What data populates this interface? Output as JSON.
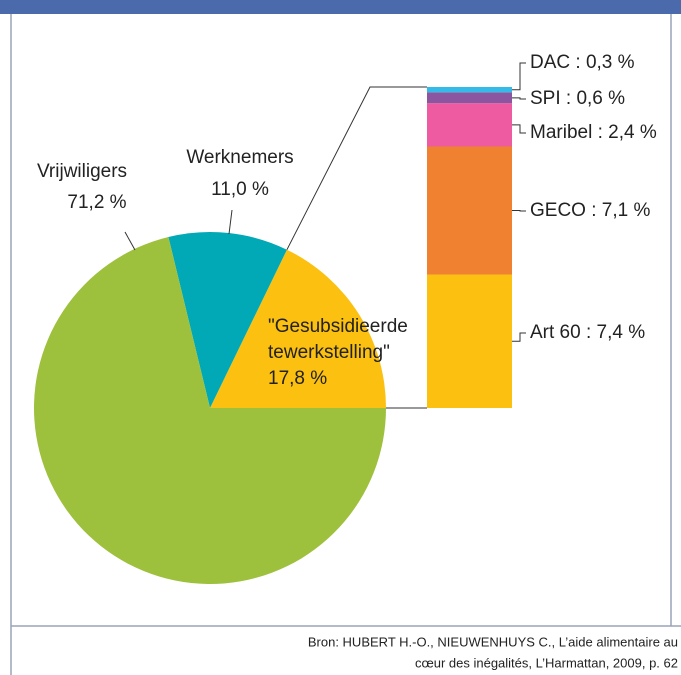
{
  "chart_data": {
    "type": "pie",
    "categories": [
      "\"Gesubsidieerde tewerkstelling\"",
      "Werknemers",
      "Vrijwiligers"
    ],
    "values": [
      17.8,
      11.0,
      71.2
    ],
    "value_labels": [
      "17,8 %",
      "11,0 %",
      "71,2 %"
    ],
    "colors": [
      "#fcc010",
      "#00a9b5",
      "#9dc13c"
    ],
    "breakdown": {
      "value_labels": [
        "DAC : 0,3 %",
        "SPI : 0,6 %",
        "Maribel : 2,4 %",
        "GECO : 7,1 %",
        "Art 60 : 7,4 %"
      ],
      "values": [
        0.3,
        0.6,
        2.4,
        7.1,
        7.4
      ],
      "colors": [
        "#35b9e9",
        "#8c55a0",
        "#ee5ba0",
        "#ef8131",
        "#fcc010"
      ]
    },
    "source": [
      "Bron: HUBERT H.-O., NIEUWENHUYS C., L’aide alimentaire au",
      "cœur des inégalités, L’Harmattan, 2009, p. 62"
    ]
  }
}
